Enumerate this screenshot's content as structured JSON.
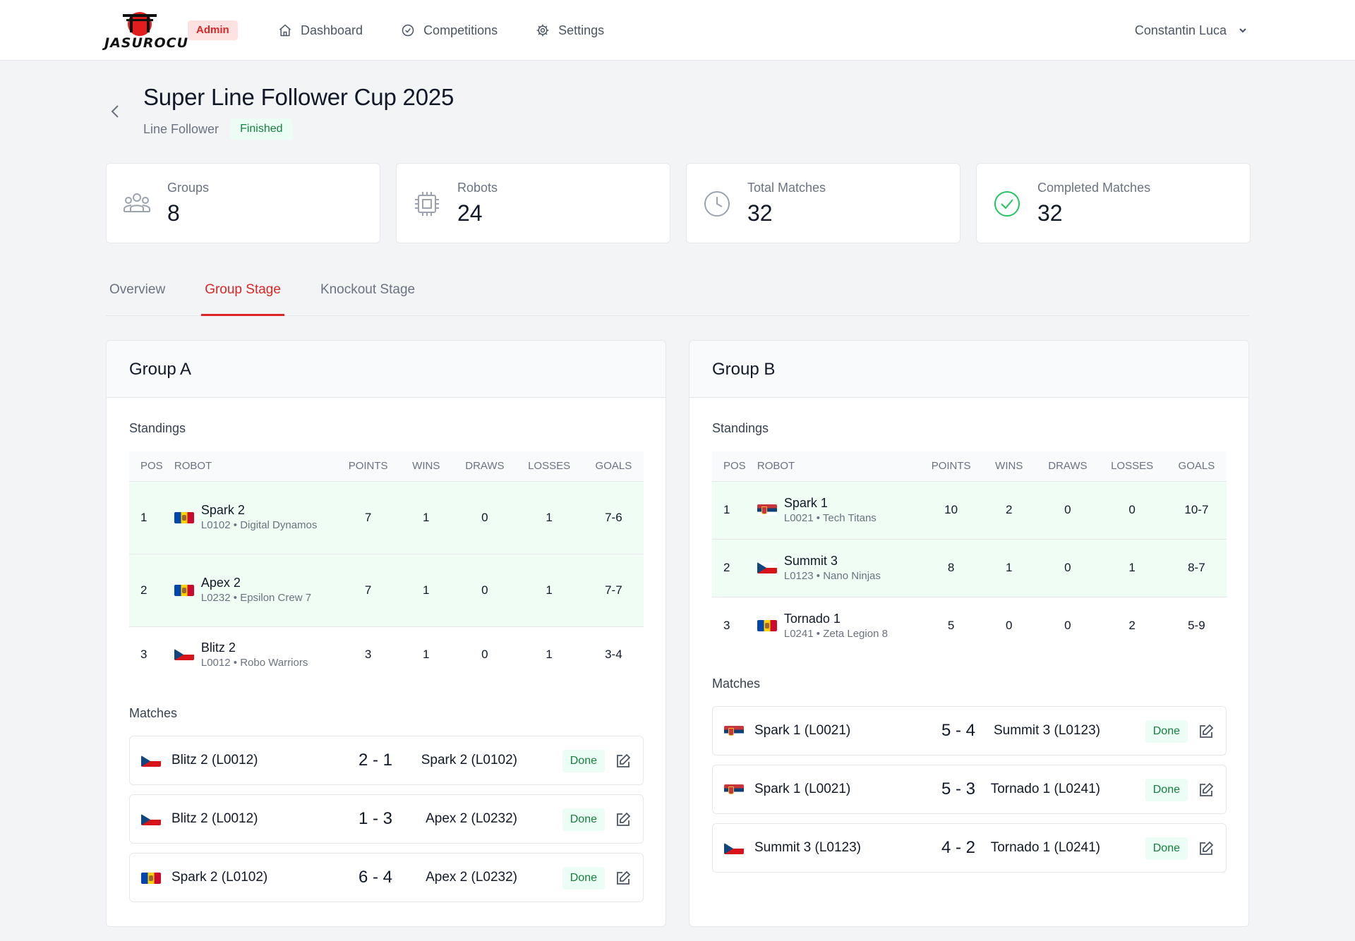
{
  "app": {
    "logo_text": "JASUROCU",
    "role_badge": "Admin",
    "nav": [
      {
        "label": "Dashboard",
        "icon": "home-icon"
      },
      {
        "label": "Competitions",
        "icon": "check-circle-icon"
      },
      {
        "label": "Settings",
        "icon": "gear-icon"
      }
    ],
    "user_name": "Constantin Luca"
  },
  "competition": {
    "title": "Super Line Follower Cup 2025",
    "category": "Line Follower",
    "status": "Finished"
  },
  "stats": [
    {
      "label": "Groups",
      "value": "8",
      "icon": "users-icon"
    },
    {
      "label": "Robots",
      "value": "24",
      "icon": "cpu-icon"
    },
    {
      "label": "Total Matches",
      "value": "32",
      "icon": "clock-icon"
    },
    {
      "label": "Completed Matches",
      "value": "32",
      "icon": "check-circle-icon"
    }
  ],
  "tabs": [
    {
      "label": "Overview",
      "active": false
    },
    {
      "label": "Group Stage",
      "active": true
    },
    {
      "label": "Knockout Stage",
      "active": false
    }
  ],
  "labels": {
    "standings": "Standings",
    "matches": "Matches",
    "columns": [
      "POS",
      "ROBOT",
      "POINTS",
      "WINS",
      "DRAWS",
      "LOSSES",
      "GOALS"
    ]
  },
  "colors": {
    "accent": "#dc2626",
    "qualified_row": "#f0fdf4",
    "status_done": "#15803d"
  },
  "groups": [
    {
      "name": "Group A",
      "standings": [
        {
          "pos": "1",
          "robot": "Spark 2",
          "meta_code": "L0102",
          "meta_team": "Digital Dynamos",
          "flag": "moldova-flag-icon",
          "points": "7",
          "wins": "1",
          "draws": "0",
          "losses": "1",
          "goals": "7-6"
        },
        {
          "pos": "2",
          "robot": "Apex 2",
          "meta_code": "L0232",
          "meta_team": "Epsilon Crew 7",
          "flag": "moldova-flag-icon",
          "points": "7",
          "wins": "1",
          "draws": "0",
          "losses": "1",
          "goals": "7-7"
        },
        {
          "pos": "3",
          "robot": "Blitz 2",
          "meta_code": "L0012",
          "meta_team": "Robo Warriors",
          "flag": "czech-flag-icon",
          "points": "3",
          "wins": "1",
          "draws": "0",
          "losses": "1",
          "goals": "3-4"
        }
      ],
      "matches": [
        {
          "home": "Blitz 2 (L0012)",
          "home_flag": "czech-flag-icon",
          "score": "2 - 1",
          "away": "Spark 2 (L0102)",
          "away_flag": "moldova-flag-icon",
          "status": "Done"
        },
        {
          "home": "Blitz 2 (L0012)",
          "home_flag": "czech-flag-icon",
          "score": "1 - 3",
          "away": "Apex 2 (L0232)",
          "away_flag": "moldova-flag-icon",
          "status": "Done"
        },
        {
          "home": "Spark 2 (L0102)",
          "home_flag": "moldova-flag-icon",
          "score": "6 - 4",
          "away": "Apex 2 (L0232)",
          "away_flag": "moldova-flag-icon",
          "status": "Done"
        }
      ]
    },
    {
      "name": "Group B",
      "standings": [
        {
          "pos": "1",
          "robot": "Spark 1",
          "meta_code": "L0021",
          "meta_team": "Tech Titans",
          "flag": "serbia-flag-icon",
          "points": "10",
          "wins": "2",
          "draws": "0",
          "losses": "0",
          "goals": "10-7"
        },
        {
          "pos": "2",
          "robot": "Summit 3",
          "meta_code": "L0123",
          "meta_team": "Nano Ninjas",
          "flag": "czech-flag-icon",
          "points": "8",
          "wins": "1",
          "draws": "0",
          "losses": "1",
          "goals": "8-7"
        },
        {
          "pos": "3",
          "robot": "Tornado 1",
          "meta_code": "L0241",
          "meta_team": "Zeta Legion 8",
          "flag": "moldova-flag-icon",
          "points": "5",
          "wins": "0",
          "draws": "0",
          "losses": "2",
          "goals": "5-9"
        }
      ],
      "matches": [
        {
          "home": "Spark 1 (L0021)",
          "home_flag": "serbia-flag-icon",
          "score": "5 - 4",
          "away": "Summit 3 (L0123)",
          "away_flag": "czech-flag-icon",
          "status": "Done"
        },
        {
          "home": "Spark 1 (L0021)",
          "home_flag": "serbia-flag-icon",
          "score": "5 - 3",
          "away": "Tornado 1 (L0241)",
          "away_flag": "moldova-flag-icon",
          "status": "Done"
        },
        {
          "home": "Summit 3 (L0123)",
          "home_flag": "czech-flag-icon",
          "score": "4 - 2",
          "away": "Tornado 1 (L0241)",
          "away_flag": "moldova-flag-icon",
          "status": "Done"
        }
      ]
    }
  ]
}
